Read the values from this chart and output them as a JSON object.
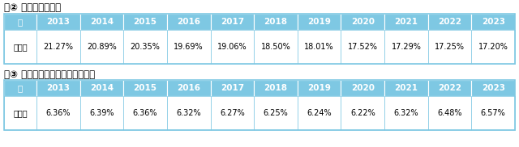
{
  "title1": "表② 全国世帯普及率",
  "title2": "表③ 軽二輪・小型二輪世帯普及率",
  "years": [
    "年",
    "2013",
    "2014",
    "2015",
    "2016",
    "2017",
    "2018",
    "2019",
    "2020",
    "2021",
    "2022",
    "2023"
  ],
  "row_label": "普及率",
  "table1_values": [
    "21.27%",
    "20.89%",
    "20.35%",
    "19.69%",
    "19.06%",
    "18.50%",
    "18.01%",
    "17.52%",
    "17.29%",
    "17.25%",
    "17.20%"
  ],
  "table2_values": [
    "6.36%",
    "6.39%",
    "6.36%",
    "6.32%",
    "6.27%",
    "6.25%",
    "6.24%",
    "6.22%",
    "6.32%",
    "6.48%",
    "6.57%"
  ],
  "header_bg": "#7EC8E3",
  "header_text": "#ffffff",
  "row_bg": "#ffffff",
  "row_text": "#000000",
  "border_color": "#7EC8E3",
  "title_color": "#000000",
  "outer_border": "#7EC8E3",
  "fig_bg": "#ffffff",
  "title_fontsize": 8.5,
  "header_fontsize": 7.5,
  "data_fontsize": 7.0
}
